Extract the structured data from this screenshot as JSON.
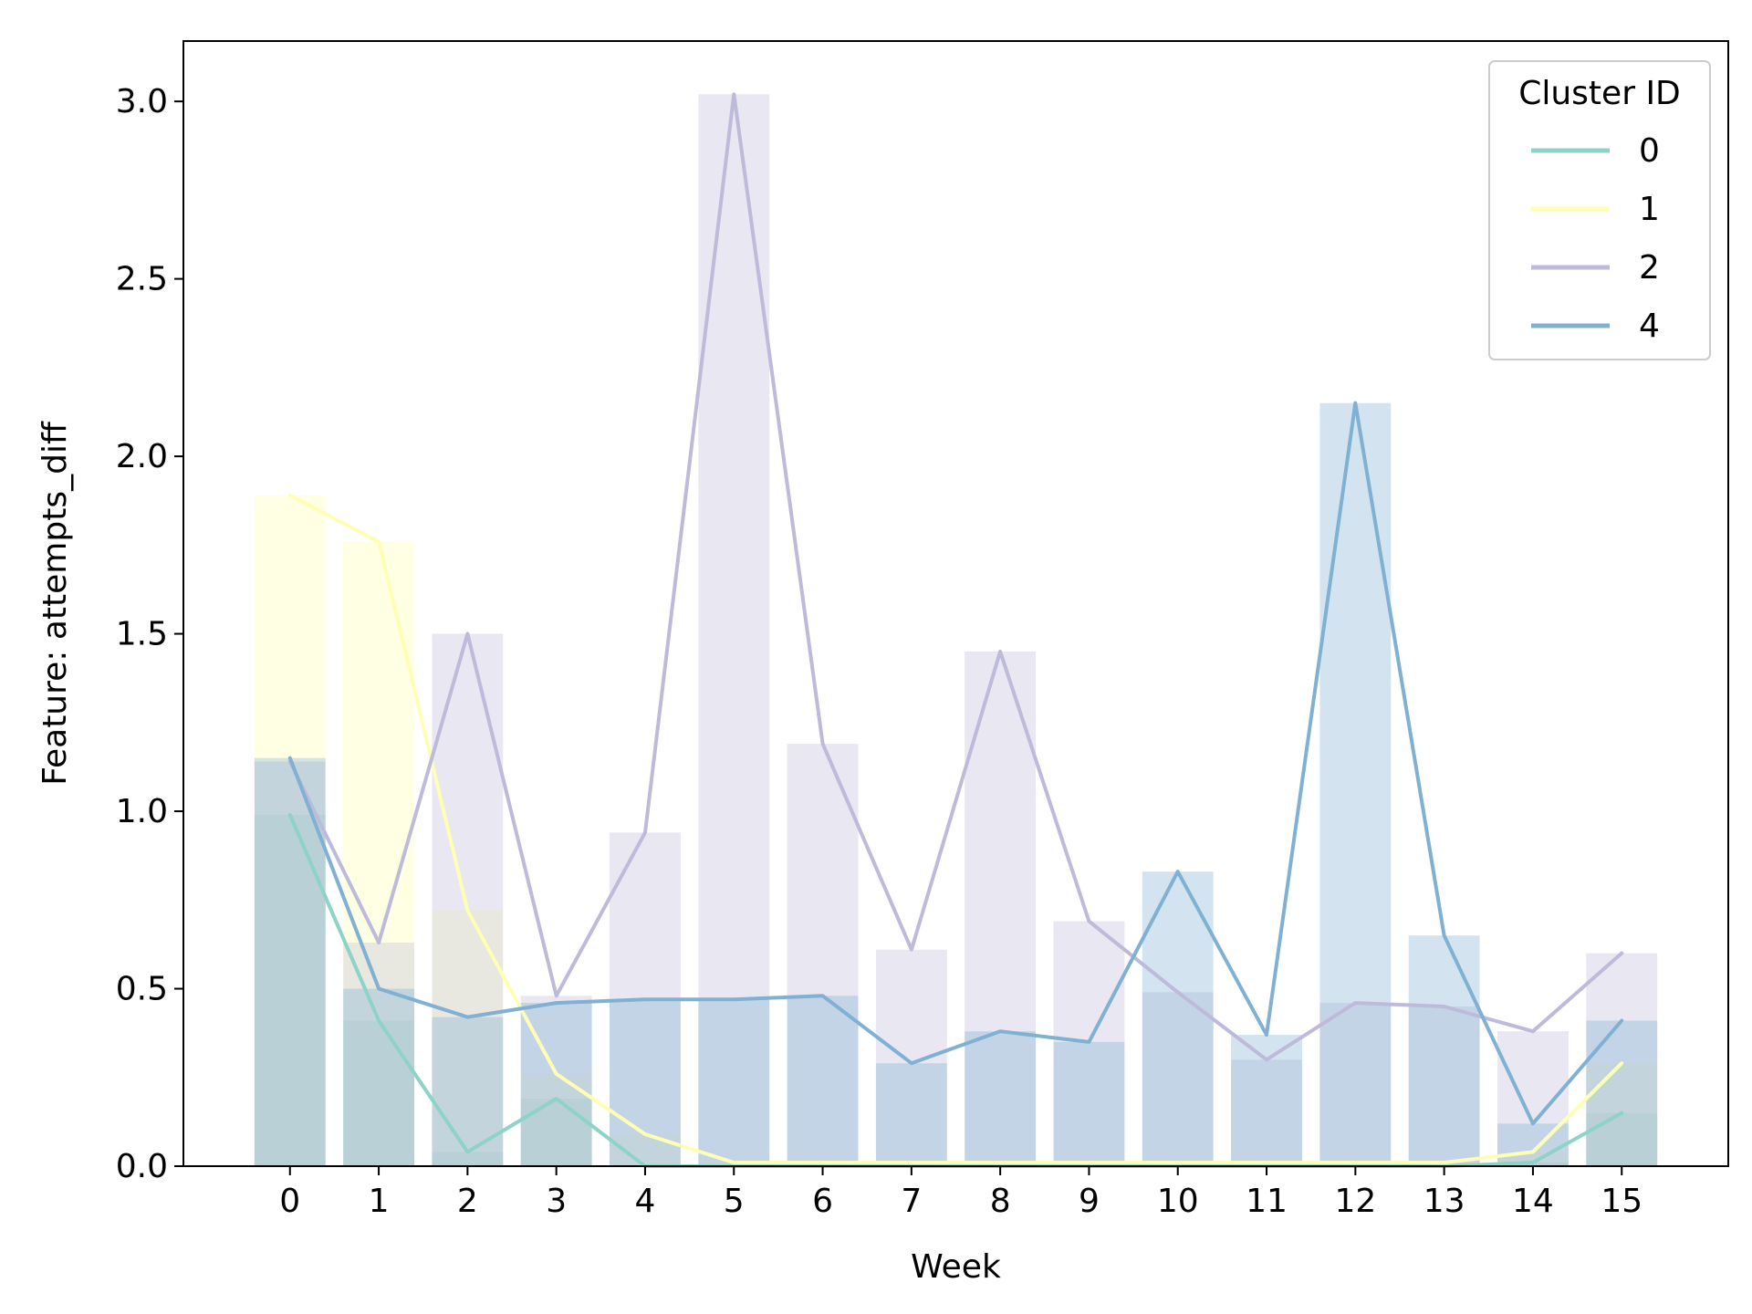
{
  "chart_data": {
    "type": "bar+line",
    "xlabel": "Week",
    "ylabel": "Feature: attempts_diff",
    "x": [
      0,
      1,
      2,
      3,
      4,
      5,
      6,
      7,
      8,
      9,
      10,
      11,
      12,
      13,
      14,
      15
    ],
    "xlim": [
      -1.2,
      16.2
    ],
    "ylim": [
      0,
      3.17
    ],
    "yticks": [
      0.0,
      0.5,
      1.0,
      1.5,
      2.0,
      2.5,
      3.0
    ],
    "ytick_labels": [
      "0.0",
      "0.5",
      "1.0",
      "1.5",
      "2.0",
      "2.5",
      "3.0"
    ],
    "grid": false,
    "legend": {
      "title": "Cluster ID",
      "placement": "top-right"
    },
    "series": [
      {
        "name": "0",
        "color": "#8dd3c7",
        "values": [
          0.99,
          0.41,
          0.04,
          0.19,
          0.0,
          0.0,
          0.0,
          0.0,
          0.0,
          0.0,
          0.0,
          0.0,
          0.0,
          0.0,
          0.01,
          0.15
        ]
      },
      {
        "name": "1",
        "color": "#ffffb3",
        "values": [
          1.89,
          1.76,
          0.72,
          0.26,
          0.09,
          0.01,
          0.01,
          0.01,
          0.01,
          0.01,
          0.01,
          0.01,
          0.01,
          0.01,
          0.04,
          0.29
        ]
      },
      {
        "name": "2",
        "color": "#bebada",
        "values": [
          1.14,
          0.63,
          1.5,
          0.48,
          0.94,
          3.02,
          1.19,
          0.61,
          1.45,
          0.69,
          0.49,
          0.3,
          0.46,
          0.45,
          0.38,
          0.6
        ]
      },
      {
        "name": "4",
        "color": "#80b1d3",
        "values": [
          1.15,
          0.5,
          0.42,
          0.46,
          0.47,
          0.47,
          0.48,
          0.29,
          0.38,
          0.35,
          0.83,
          0.37,
          2.15,
          0.65,
          0.12,
          0.41
        ]
      }
    ]
  }
}
